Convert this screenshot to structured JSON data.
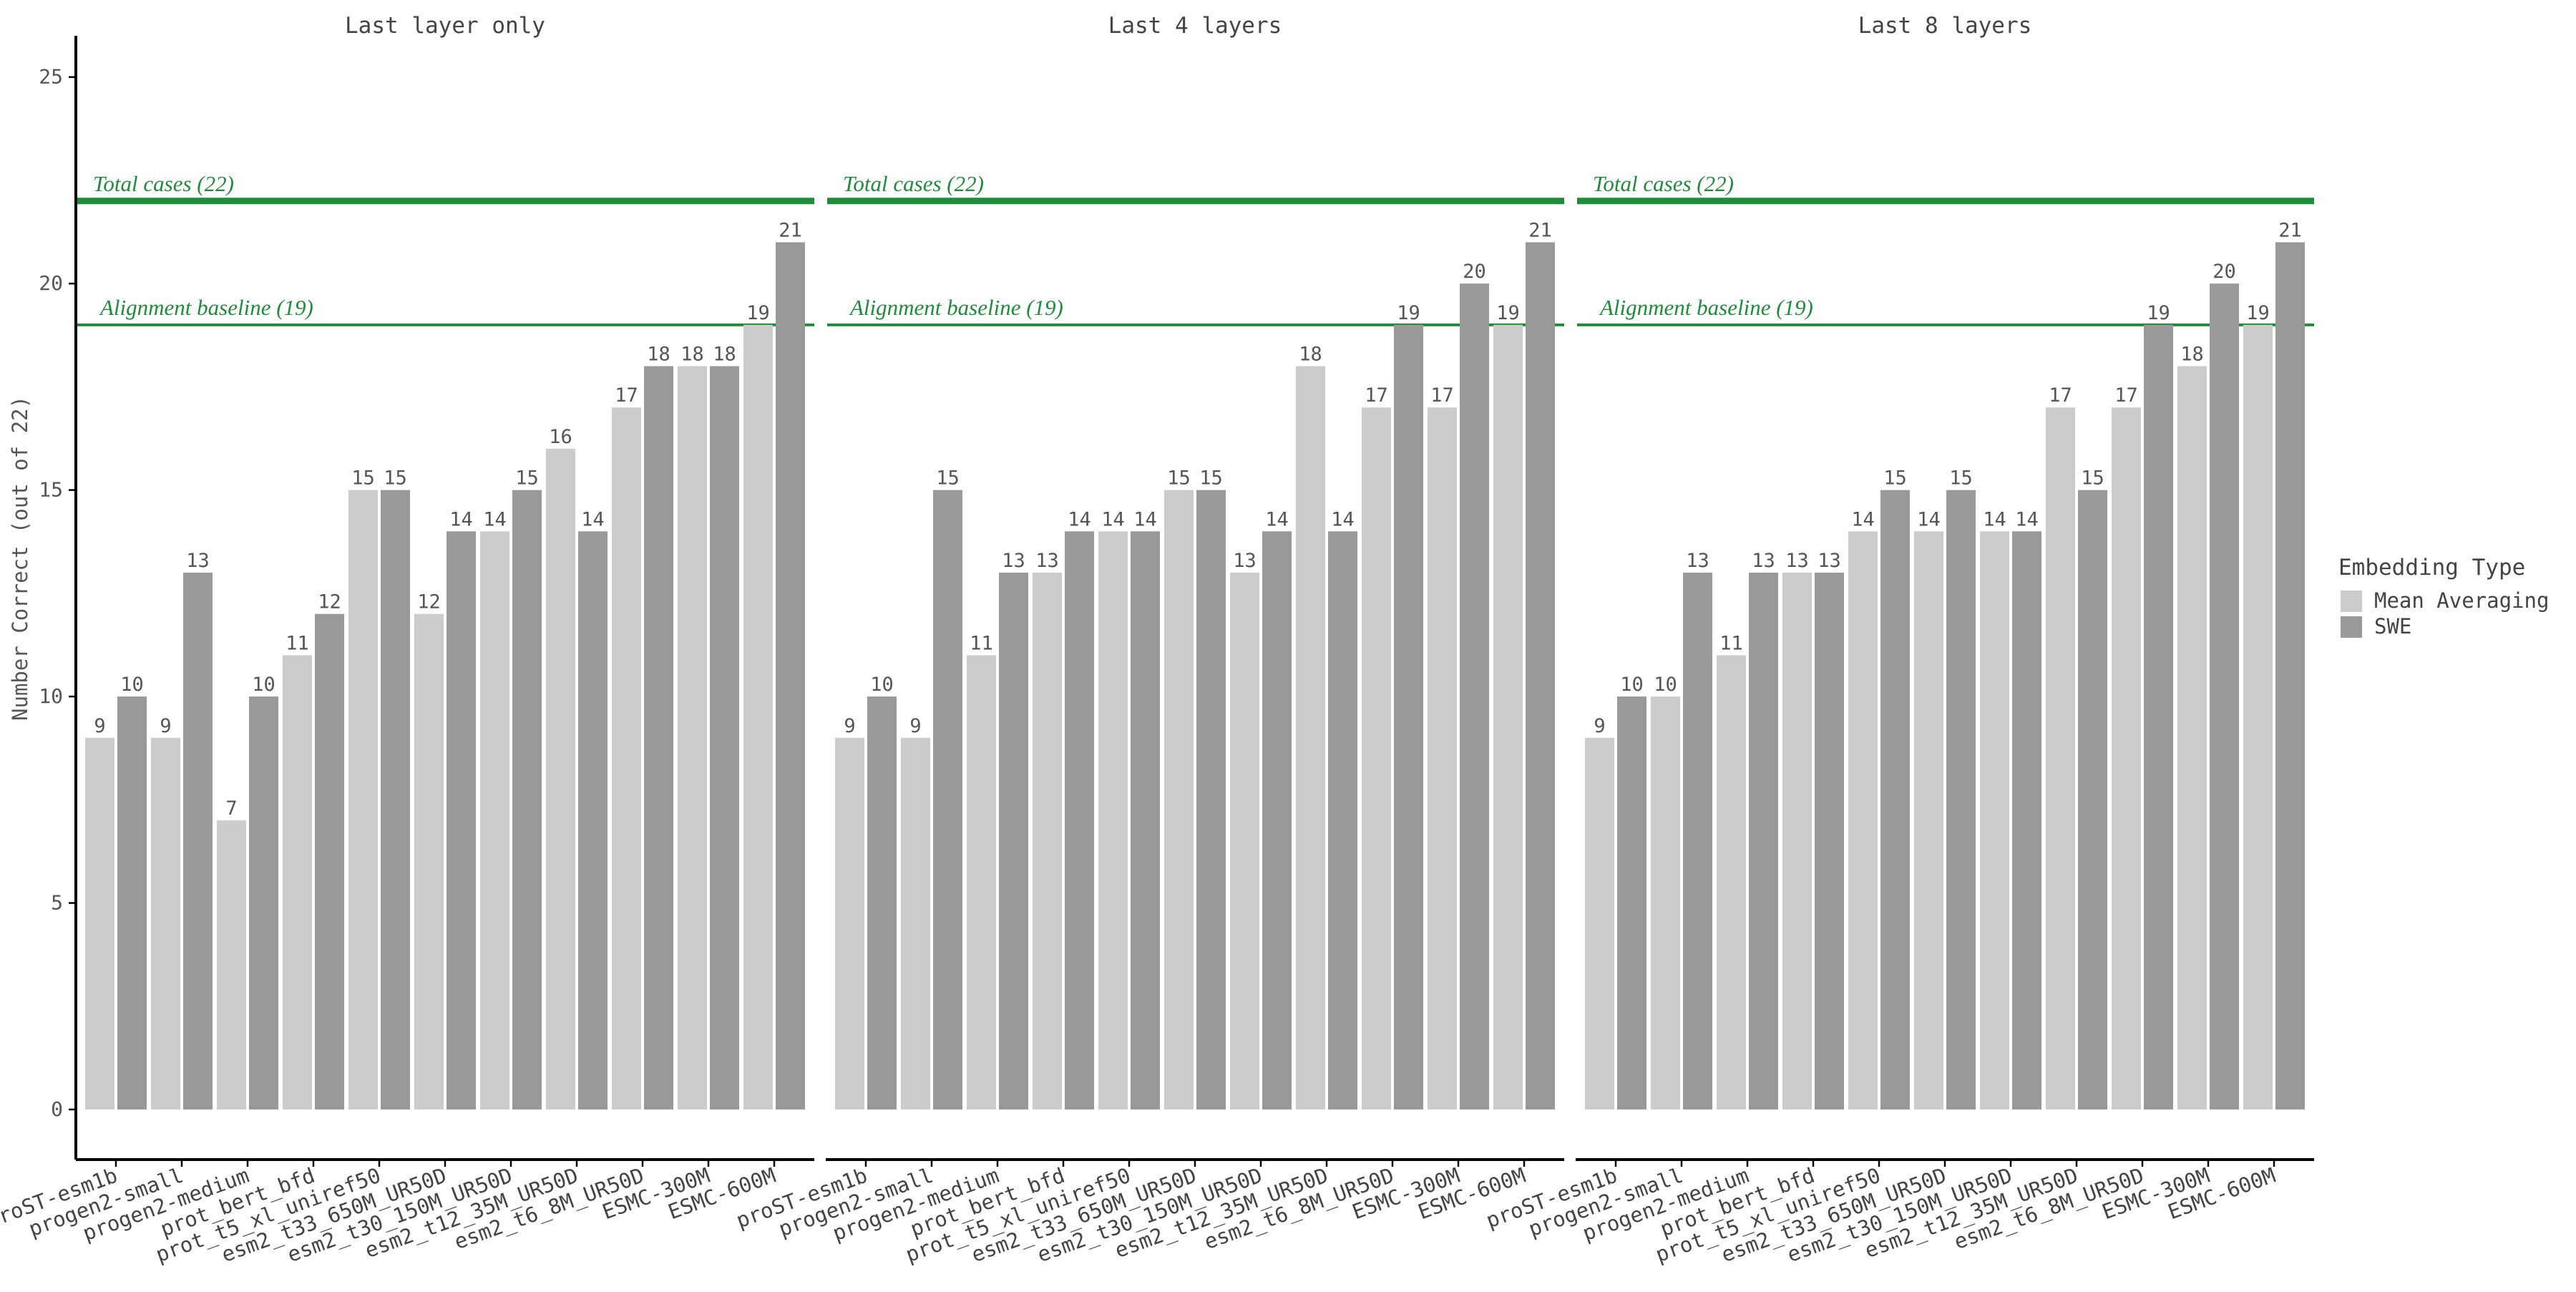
{
  "chart_data": {
    "type": "bar",
    "ylabel": "Number Correct (out of 22)",
    "ylim": [
      0,
      26
    ],
    "yticks": [
      0,
      5,
      10,
      15,
      20,
      25
    ],
    "grid": false,
    "legend": {
      "title": "Embedding Type",
      "placement": "right",
      "entries": [
        "Mean Averaging",
        "SWE"
      ]
    },
    "colors": {
      "Mean Averaging": "#cccccc",
      "SWE": "#999999",
      "reference": "#1e8c3a"
    },
    "reference_lines": [
      {
        "label": "Total cases (22)",
        "y": 22
      },
      {
        "label": "Alignment baseline (19)",
        "y": 19
      }
    ],
    "categories": [
      "proST-esm1b",
      "progen2-small",
      "progen2-medium",
      "prot_bert_bfd",
      "prot_t5_xl_uniref50",
      "esm2_t33_650M_UR50D",
      "esm2_t30_150M_UR50D",
      "esm2_t12_35M_UR50D",
      "esm2_t6_8M_UR50D",
      "ESMC-300M",
      "ESMC-600M"
    ],
    "panels": [
      {
        "title": "Last layer only",
        "series": [
          {
            "name": "Mean Averaging",
            "values": [
              9,
              9,
              7,
              11,
              15,
              12,
              14,
              16,
              17,
              18,
              19
            ]
          },
          {
            "name": "SWE",
            "values": [
              10,
              13,
              10,
              12,
              15,
              14,
              15,
              14,
              18,
              18,
              21
            ]
          }
        ]
      },
      {
        "title": "Last 4 layers",
        "series": [
          {
            "name": "Mean Averaging",
            "values": [
              9,
              9,
              11,
              13,
              14,
              15,
              13,
              18,
              17,
              17,
              19
            ]
          },
          {
            "name": "SWE",
            "values": [
              10,
              15,
              13,
              14,
              14,
              15,
              14,
              14,
              19,
              20,
              21
            ]
          }
        ]
      },
      {
        "title": "Last 8 layers",
        "series": [
          {
            "name": "Mean Averaging",
            "values": [
              9,
              10,
              11,
              13,
              14,
              14,
              14,
              17,
              17,
              18,
              19
            ]
          },
          {
            "name": "SWE",
            "values": [
              10,
              13,
              13,
              13,
              15,
              15,
              14,
              15,
              19,
              20,
              21
            ]
          }
        ]
      }
    ]
  }
}
